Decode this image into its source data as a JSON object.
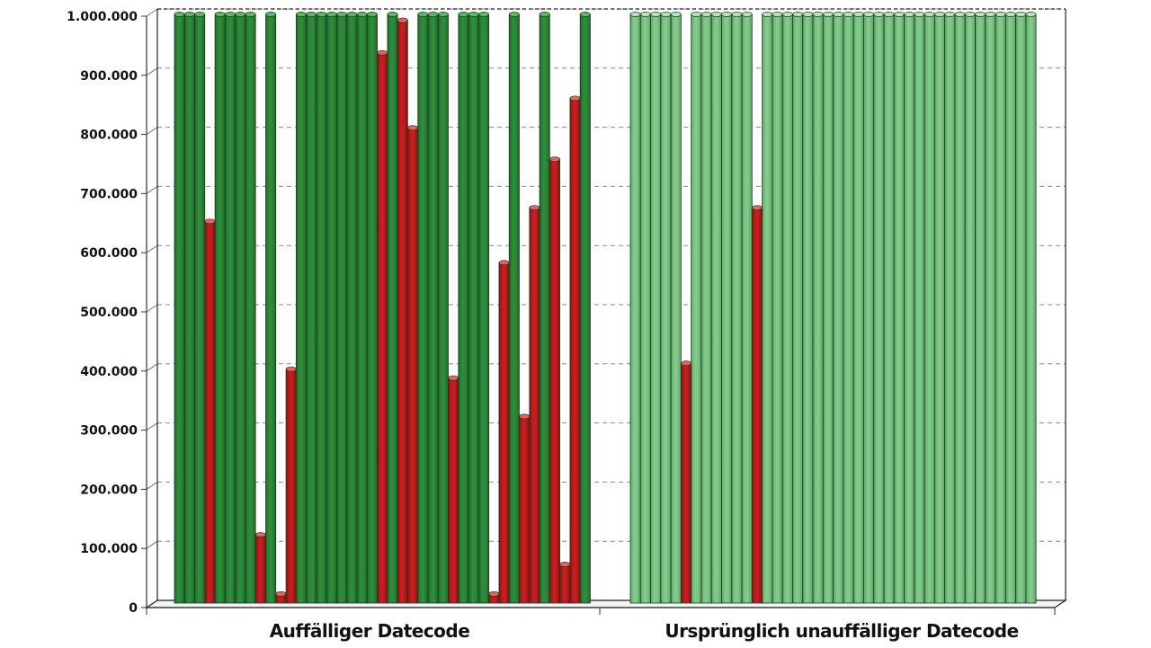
{
  "chart_data": {
    "type": "bar",
    "ylim": [
      0,
      1000000
    ],
    "yticks": [
      0,
      100000,
      200000,
      300000,
      400000,
      500000,
      600000,
      700000,
      800000,
      900000,
      1000000
    ],
    "ytick_labels": [
      "0",
      "100.000",
      "200.000",
      "300.000",
      "400.000",
      "500.000",
      "600.000",
      "700.000",
      "800.000",
      "900.000",
      "1.000.000"
    ],
    "grid": true,
    "categories": [
      "Auffälliger Datecode",
      "Ursprünglich unauffälliger Datecode"
    ],
    "groups": [
      {
        "label": "Auffälliger Datecode",
        "values": [
          1000000,
          1000000,
          1000000,
          650000,
          1000000,
          1000000,
          1000000,
          1000000,
          120000,
          1000000,
          20000,
          400000,
          1000000,
          1000000,
          1000000,
          1000000,
          1000000,
          1000000,
          1000000,
          1000000,
          935000,
          1000000,
          990000,
          808000,
          1000000,
          1000000,
          1000000,
          385000,
          1000000,
          1000000,
          1000000,
          20000,
          580000,
          1000000,
          320000,
          673000,
          1000000,
          755000,
          70000,
          858000,
          1000000
        ],
        "status": [
          "ok",
          "ok",
          "ok",
          "fail",
          "ok",
          "ok",
          "ok",
          "ok",
          "fail",
          "ok",
          "fail",
          "fail",
          "ok",
          "ok",
          "ok",
          "ok",
          "ok",
          "ok",
          "ok",
          "ok",
          "fail",
          "ok",
          "fail",
          "fail",
          "ok",
          "ok",
          "ok",
          "fail",
          "ok",
          "ok",
          "ok",
          "fail",
          "fail",
          "ok",
          "fail",
          "fail",
          "ok",
          "fail",
          "fail",
          "fail",
          "ok"
        ]
      },
      {
        "label": "Ursprünglich unauffälliger Datecode",
        "values": [
          1000000,
          1000000,
          1000000,
          1000000,
          1000000,
          410000,
          1000000,
          1000000,
          1000000,
          1000000,
          1000000,
          1000000,
          673000,
          1000000,
          1000000,
          1000000,
          1000000,
          1000000,
          1000000,
          1000000,
          1000000,
          1000000,
          1000000,
          1000000,
          1000000,
          1000000,
          1000000,
          1000000,
          1000000,
          1000000,
          1000000,
          1000000,
          1000000,
          1000000,
          1000000,
          1000000,
          1000000,
          1000000,
          1000000,
          1000000
        ],
        "status": [
          "ok",
          "ok",
          "ok",
          "ok",
          "ok",
          "fail",
          "ok",
          "ok",
          "ok",
          "ok",
          "ok",
          "ok",
          "fail",
          "ok",
          "ok",
          "ok",
          "ok",
          "ok",
          "ok",
          "ok",
          "ok",
          "ok",
          "ok",
          "ok",
          "ok",
          "ok",
          "ok",
          "ok",
          "ok",
          "ok",
          "ok",
          "ok",
          "ok",
          "ok",
          "ok",
          "ok",
          "ok",
          "ok",
          "ok",
          "ok"
        ]
      }
    ],
    "colors": {
      "ok_group_0": "#2e8b3a",
      "ok_group_0_dark": "#1f6a2b",
      "ok_group_0_top": "#5ab862",
      "ok_group_1": "#82c98a",
      "ok_group_1_dark": "#5aa863",
      "ok_group_1_top": "#b7e3bb",
      "fail": "#c41e1e",
      "fail_dark": "#8e1010",
      "fail_top": "#e86060",
      "grid": "#8a8a8a",
      "axis": "#333333"
    }
  }
}
